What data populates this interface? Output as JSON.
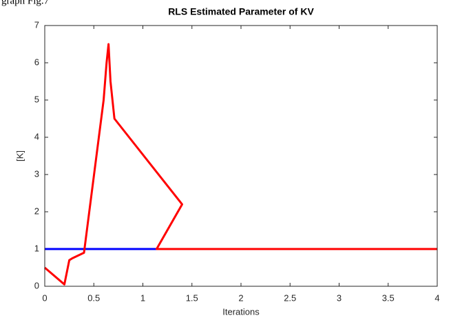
{
  "caption": "graph Fig.7",
  "chart_data": {
    "type": "line",
    "title": "RLS Estimated Parameter of KV",
    "xlabel": "Iterations",
    "ylabel": "[K]",
    "xlim": [
      0,
      4
    ],
    "xticks": [
      0,
      0.5,
      1,
      1.5,
      2,
      2.5,
      3,
      3.5,
      4
    ],
    "ylim": [
      0,
      7
    ],
    "yticks": [
      0,
      1,
      2,
      3,
      4,
      5,
      6,
      7
    ],
    "grid": false,
    "series": [
      {
        "color": "#0000ff",
        "x": [
          0,
          4
        ],
        "values": [
          1,
          1
        ]
      },
      {
        "color": "#ff0000",
        "x": [
          0,
          0.2,
          0.25,
          0.28,
          0.4,
          0.6,
          0.63,
          0.65,
          0.67,
          0.71,
          1.4,
          1.14,
          4
        ],
        "values": [
          0.5,
          0.05,
          0.7,
          0.75,
          0.9,
          5.0,
          6.0,
          6.5,
          5.5,
          4.5,
          2.2,
          1.0,
          1.0
        ]
      }
    ]
  }
}
